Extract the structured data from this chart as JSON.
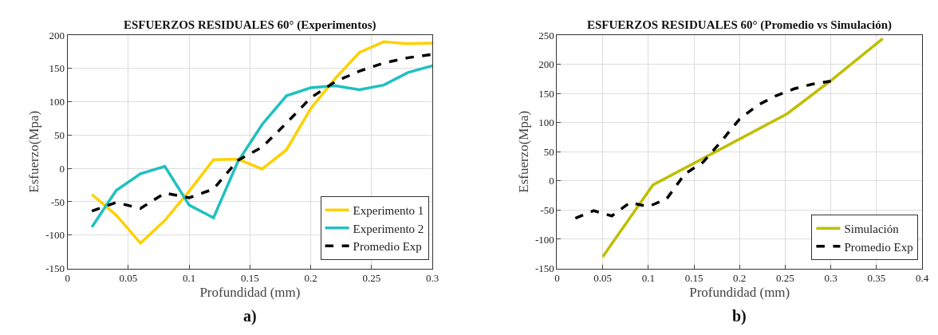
{
  "chart_data": [
    {
      "type": "line",
      "title": "ESFUERZOS RESIDUALES 60° (Experimentos)",
      "xlabel": "Profundidad (mm)",
      "ylabel": "Esfuerzo(Mpa)",
      "annotations": [
        "a)"
      ],
      "x": [
        0.02,
        0.04,
        0.06,
        0.08,
        0.1,
        0.12,
        0.14,
        0.16,
        0.18,
        0.2,
        0.22,
        0.24,
        0.26,
        0.28,
        0.3
      ],
      "series": [
        {
          "name": "Experimento 1",
          "color": "#ffd000",
          "values": [
            -39,
            -70,
            -112,
            -78,
            -34,
            13,
            14,
            -1,
            28,
            90,
            135,
            174,
            190,
            187,
            188
          ]
        },
        {
          "name": "Experimento 2",
          "color": "#20c0c0",
          "values": [
            -88,
            -33,
            -8,
            3,
            -55,
            -74,
            10,
            66,
            109,
            121,
            124,
            118,
            125,
            144,
            154
          ]
        },
        {
          "name": "Promedio Exp",
          "color": "#000000",
          "line_style": "dashed",
          "values": [
            -64,
            -51,
            -60,
            -37,
            -44,
            -31,
            12,
            32,
            68,
            106,
            130,
            146,
            158,
            166,
            171
          ]
        }
      ],
      "xlim": [
        0,
        0.3
      ],
      "xticks": [
        0,
        0.05,
        0.1,
        0.15,
        0.2,
        0.25,
        0.3
      ],
      "ylim": [
        -150,
        200
      ],
      "yticks": [
        -150,
        -100,
        -50,
        0,
        50,
        100,
        150,
        200
      ],
      "grid": true,
      "legend": "bottom right",
      "line_style": "solid"
    },
    {
      "type": "line",
      "title": "ESFUERZOS RESIDUALES 60° (Promedio vs Simulación)",
      "xlabel": "Profundidad (mm)",
      "ylabel": "Esfuerzo(Mpa)",
      "annotations": [
        "b)"
      ],
      "series": [
        {
          "name": "Simulación",
          "color": "#bfbf00",
          "x": [
            0.05,
            0.105,
            0.252,
            0.3,
            0.357
          ],
          "values": [
            -130,
            -7,
            115,
            172,
            244
          ]
        },
        {
          "name": "Promedio Exp",
          "color": "#000000",
          "line_style": "dashed",
          "x": [
            0.02,
            0.04,
            0.06,
            0.08,
            0.1,
            0.12,
            0.14,
            0.16,
            0.18,
            0.2,
            0.22,
            0.24,
            0.26,
            0.28,
            0.3
          ],
          "values": [
            -64,
            -51,
            -60,
            -37,
            -44,
            -31,
            12,
            32,
            68,
            106,
            130,
            146,
            158,
            166,
            171
          ]
        }
      ],
      "xlim": [
        0,
        0.4
      ],
      "xticks": [
        0,
        0.05,
        0.1,
        0.15,
        0.2,
        0.25,
        0.3,
        0.35,
        0.4
      ],
      "ylim": [
        -150,
        250
      ],
      "yticks": [
        -150,
        -100,
        -50,
        0,
        50,
        100,
        150,
        200,
        250
      ],
      "grid": true,
      "legend": "bottom right",
      "line_style": "solid"
    }
  ]
}
